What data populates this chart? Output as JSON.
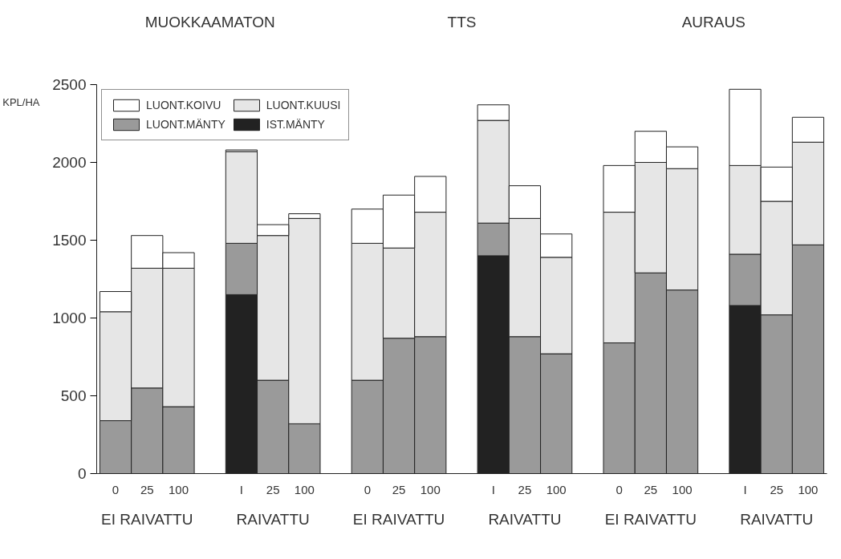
{
  "chart_data": {
    "type": "bar",
    "stacked": true,
    "ylabel": "KPL/HA",
    "categories": [
      "0",
      "25",
      "100",
      "I",
      "25",
      "100",
      "0",
      "25",
      "100",
      "I",
      "25",
      "100",
      "0",
      "25",
      "100",
      "I",
      "25",
      "100"
    ],
    "series": [
      {
        "name": "IST.MÄNTY",
        "color": "#222222",
        "values": [
          0,
          0,
          0,
          1150,
          0,
          0,
          0,
          0,
          0,
          1400,
          0,
          0,
          0,
          0,
          0,
          1080,
          0,
          0
        ]
      },
      {
        "name": "LUONT.MÄNTY",
        "color": "#9a9a9a",
        "values": [
          340,
          550,
          430,
          330,
          600,
          320,
          600,
          870,
          880,
          210,
          880,
          770,
          840,
          1290,
          1180,
          330,
          1020,
          1470
        ]
      },
      {
        "name": "LUONT.KUUSI",
        "color": "#e6e6e6",
        "values": [
          700,
          770,
          890,
          590,
          930,
          1320,
          880,
          580,
          800,
          660,
          760,
          620,
          840,
          710,
          780,
          570,
          730,
          660
        ]
      },
      {
        "name": "LUONT.KOIVU",
        "color": "#ffffff",
        "values": [
          130,
          210,
          100,
          10,
          70,
          30,
          220,
          340,
          230,
          100,
          210,
          150,
          300,
          200,
          140,
          490,
          220,
          160
        ]
      }
    ],
    "ylim": [
      0,
      2500
    ],
    "yticks": [
      0,
      500,
      1000,
      1500,
      2000,
      2500
    ],
    "grid": false,
    "legend": "top left",
    "annotations": [
      "MUOKKAAMATON",
      "TTS",
      "AURAUS",
      "EI RAIVATTU",
      "RAIVATTU",
      "EI RAIVATTU",
      "RAIVATTU",
      "EI RAIVATTU",
      "RAIVATTU"
    ]
  }
}
